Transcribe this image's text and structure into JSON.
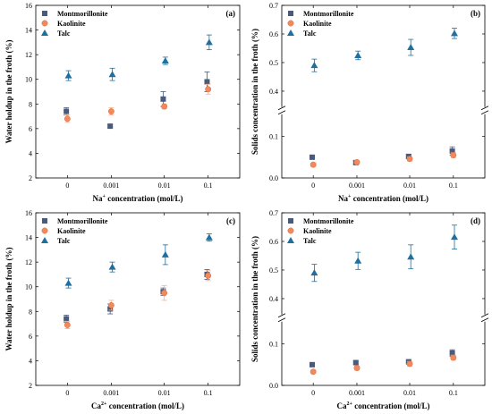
{
  "chart_data": [
    {
      "panel_label": "(a)",
      "type": "scatter",
      "categories": [
        "0",
        "0.001",
        "0.01",
        "0.1"
      ],
      "xlabel_prefix": "Na",
      "xlabel_sup": "+",
      "xlabel_suffix": " concentration (mol/L)",
      "ylabel": "Water holdup in the froth (%)",
      "ylim": [
        2,
        16
      ],
      "yticks": [
        "2",
        "4",
        "6",
        "8",
        "10",
        "12",
        "14",
        "16"
      ],
      "broken_axis": false,
      "legend_placement": "top-left",
      "series": [
        {
          "name": "Montmorillonite",
          "marker": "square",
          "color": "#4a5a7a",
          "values": [
            7.4,
            6.2,
            8.4,
            9.8
          ],
          "errors": [
            0.3,
            0.1,
            0.6,
            0.8
          ]
        },
        {
          "name": "Kaolinite",
          "marker": "circle",
          "color": "#f08a5d",
          "values": [
            6.8,
            7.4,
            7.8,
            9.2
          ],
          "errors": [
            0.3,
            0.3,
            0.2,
            0.4
          ]
        },
        {
          "name": "Talc",
          "marker": "triangle",
          "color": "#1f6f9f",
          "values": [
            10.3,
            10.4,
            11.5,
            13.0
          ],
          "errors": [
            0.4,
            0.5,
            0.3,
            0.6
          ]
        }
      ]
    },
    {
      "panel_label": "(b)",
      "type": "scatter",
      "categories": [
        "0",
        "0.001",
        "0.01",
        "0.1"
      ],
      "xlabel_prefix": "Na",
      "xlabel_sup": "+",
      "xlabel_suffix": " concentration (mol/L)",
      "ylabel": "Solids concentration in the froth (%)",
      "broken_axis": true,
      "lower_range": [
        0,
        0.15
      ],
      "upper_range": [
        0.35,
        0.7
      ],
      "lower_ticks": [
        "0.0",
        "0.1"
      ],
      "upper_ticks": [
        "0.4",
        "0.5",
        "0.6",
        "0.7"
      ],
      "legend_placement": "top-left",
      "series": [
        {
          "name": "Montmorillonite",
          "marker": "square",
          "color": "#4a5a7a",
          "values": [
            0.05,
            0.037,
            0.052,
            0.065
          ],
          "errors": [
            0.004,
            0.004,
            0.005,
            0.01
          ]
        },
        {
          "name": "Kaolinite",
          "marker": "circle",
          "color": "#f08a5d",
          "values": [
            0.032,
            0.038,
            0.046,
            0.055
          ],
          "errors": [
            0.004,
            0.004,
            0.005,
            0.006
          ]
        },
        {
          "name": "Talc",
          "marker": "triangle",
          "color": "#1f6f9f",
          "values": [
            0.49,
            0.525,
            0.553,
            0.602
          ],
          "errors": [
            0.022,
            0.015,
            0.028,
            0.018
          ]
        }
      ]
    },
    {
      "panel_label": "(c)",
      "type": "scatter",
      "categories": [
        "0",
        "0.001",
        "0.01",
        "0.1"
      ],
      "xlabel_prefix": "Ca",
      "xlabel_sup": "2+",
      "xlabel_suffix": " concentration (mol/L)",
      "ylabel": "Water holdup in the froth (%)",
      "ylim": [
        2,
        16
      ],
      "yticks": [
        "2",
        "4",
        "6",
        "8",
        "10",
        "12",
        "14",
        "16"
      ],
      "broken_axis": false,
      "legend_placement": "top-left",
      "series": [
        {
          "name": "Montmorillonite",
          "marker": "square",
          "color": "#4a5a7a",
          "values": [
            7.4,
            8.2,
            9.6,
            11.0
          ],
          "errors": [
            0.3,
            0.4,
            0.3,
            0.4
          ]
        },
        {
          "name": "Kaolinite",
          "marker": "circle",
          "color": "#f08a5d",
          "values": [
            6.9,
            8.5,
            9.5,
            10.9
          ],
          "errors": [
            0.3,
            0.4,
            0.6,
            0.4
          ]
        },
        {
          "name": "Talc",
          "marker": "triangle",
          "color": "#1f6f9f",
          "values": [
            10.3,
            11.6,
            12.6,
            14.0
          ],
          "errors": [
            0.4,
            0.4,
            0.8,
            0.3
          ]
        }
      ]
    },
    {
      "panel_label": "(d)",
      "type": "scatter",
      "categories": [
        "0",
        "0.001",
        "0.01",
        "0.1"
      ],
      "xlabel_prefix": "Ca",
      "xlabel_sup": "2+",
      "xlabel_suffix": " concentration (mol/L)",
      "ylabel": "Solids concentration in the froth (%)",
      "broken_axis": true,
      "lower_range": [
        0,
        0.15
      ],
      "upper_range": [
        0.35,
        0.7
      ],
      "lower_ticks": [
        "0.0",
        "0.1"
      ],
      "upper_ticks": [
        "0.4",
        "0.5",
        "0.6",
        "0.7"
      ],
      "legend_placement": "top-left",
      "series": [
        {
          "name": "Montmorillonite",
          "marker": "square",
          "color": "#4a5a7a",
          "values": [
            0.05,
            0.055,
            0.057,
            0.078
          ],
          "errors": [
            0.003,
            0.004,
            0.004,
            0.008
          ]
        },
        {
          "name": "Kaolinite",
          "marker": "circle",
          "color": "#f08a5d",
          "values": [
            0.033,
            0.042,
            0.052,
            0.067
          ],
          "errors": [
            0.004,
            0.005,
            0.006,
            0.006
          ]
        },
        {
          "name": "Talc",
          "marker": "triangle",
          "color": "#1f6f9f",
          "values": [
            0.49,
            0.532,
            0.546,
            0.615
          ],
          "errors": [
            0.03,
            0.03,
            0.042,
            0.042
          ]
        }
      ]
    }
  ]
}
